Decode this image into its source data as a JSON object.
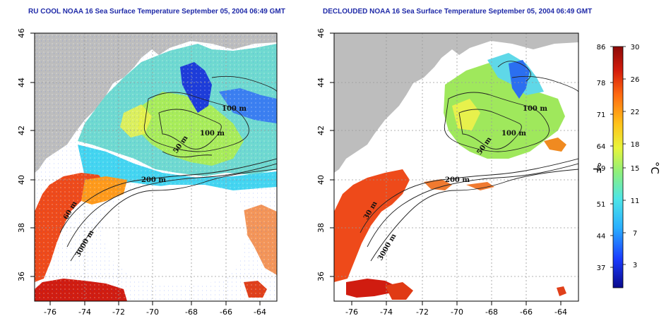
{
  "panels": [
    {
      "id": "left",
      "title": "RU COOL NOAA 16 Sea Surface Temperature September 05, 2004 06:49 GMT",
      "contour_labels": [
        "100 m",
        "100 m",
        "50 m",
        "200 m",
        "60 m",
        "3000 m"
      ]
    },
    {
      "id": "right",
      "title": "DECLOUDED NOAA 16 Sea Surface Temperature September 05, 2004 06:49 GMT",
      "contour_labels": [
        "100 m",
        "100 m",
        "50 m",
        "200 m",
        "30 m",
        "3000 m"
      ]
    }
  ],
  "axes": {
    "lon_ticks": [
      "-76",
      "-74",
      "-72",
      "-70",
      "-68",
      "-66",
      "-64"
    ],
    "lat_ticks": [
      "46",
      "44",
      "42",
      "40",
      "38",
      "36"
    ]
  },
  "colorbar": {
    "unit_left": "°F",
    "unit_right": "°C",
    "fahrenheit": [
      "86",
      "78",
      "71",
      "64",
      "59",
      "51",
      "44",
      "37"
    ],
    "celsius": [
      "30",
      "26",
      "22",
      "18",
      "15",
      "11",
      "7",
      "3"
    ],
    "gradient": [
      "#0a0a8c",
      "#1a3cff",
      "#2ab0ff",
      "#4ee6e6",
      "#8ff07a",
      "#e8f53a",
      "#ffc21a",
      "#ff6a10",
      "#d41c0c",
      "#8c0a08"
    ]
  },
  "colors": {
    "land": "#bdbdbd",
    "background": "#ffffff",
    "title": "#1f2aa8"
  }
}
